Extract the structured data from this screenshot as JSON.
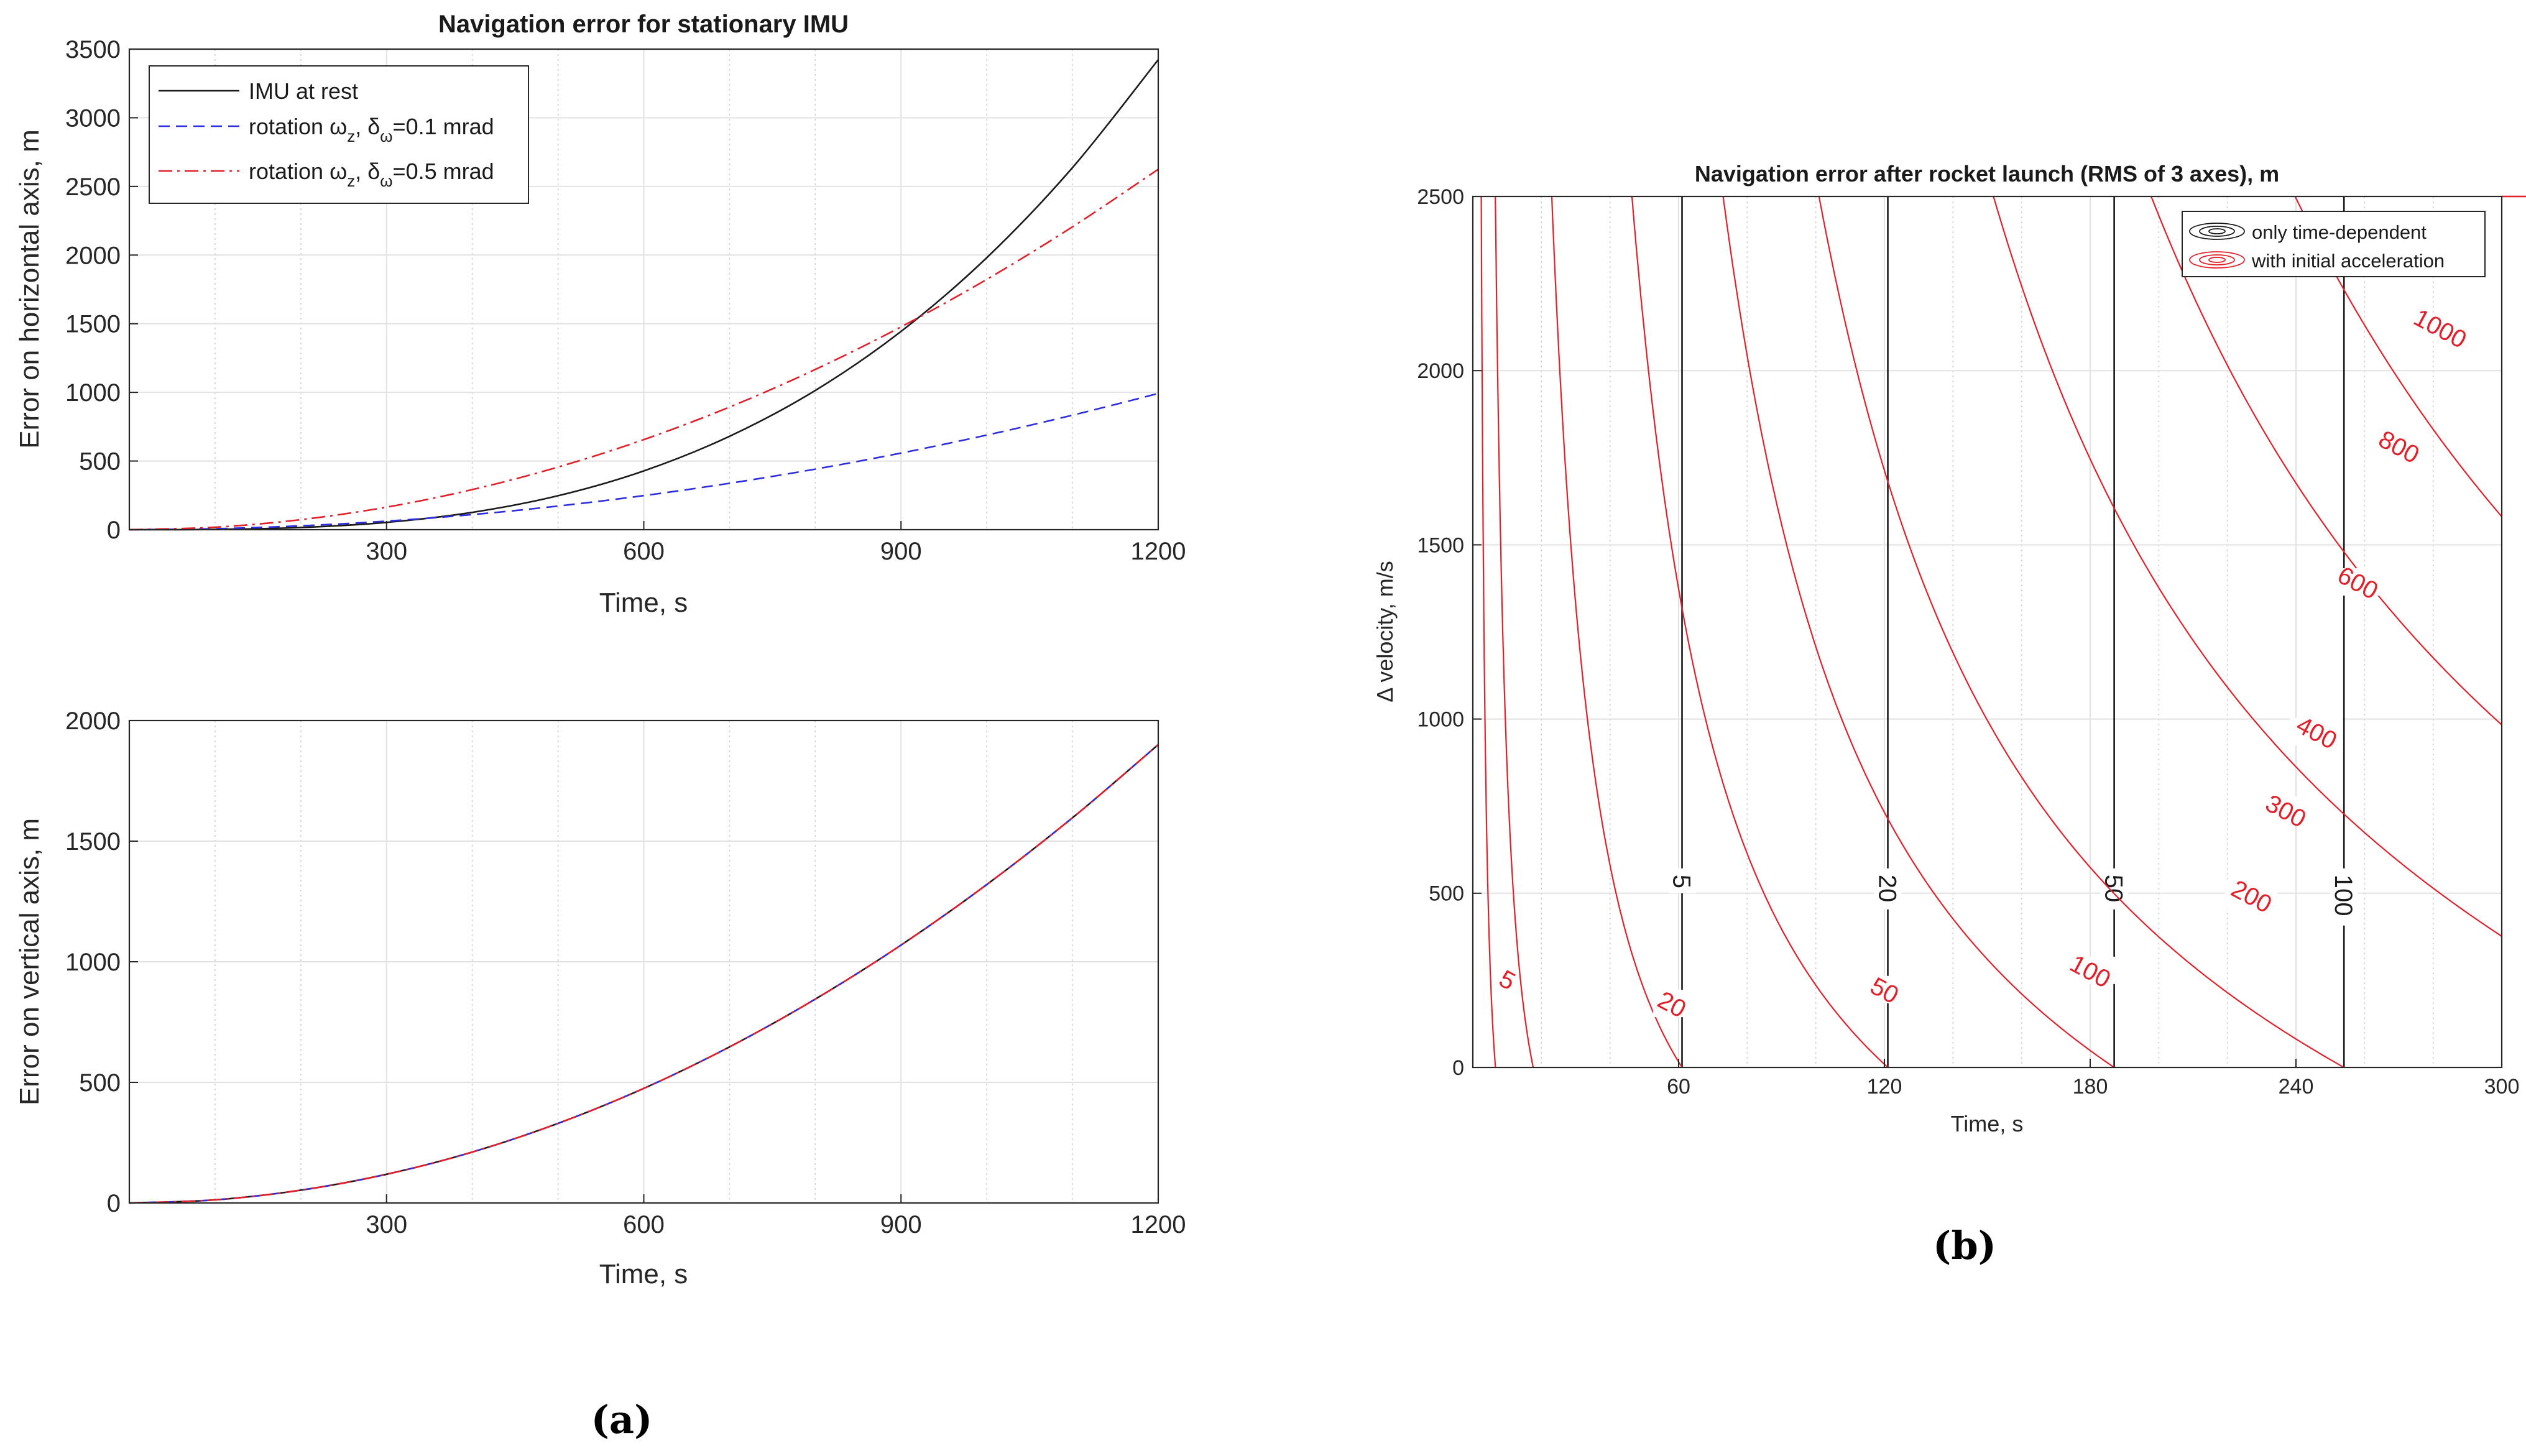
{
  "figure": {
    "caption_a": "(a)",
    "caption_b": "(b)"
  },
  "chart_data": [
    {
      "id": "horizontal",
      "type": "line",
      "title": "Navigation error for stationary IMU",
      "xlabel": "Time, s",
      "ylabel": "Error on horizontal axis, m",
      "xlim": [
        0,
        1200
      ],
      "ylim": [
        0,
        3500
      ],
      "xticks": [
        300,
        600,
        900,
        1200
      ],
      "yticks": [
        0,
        500,
        1000,
        1500,
        2000,
        2500,
        3000,
        3500
      ],
      "grid": true,
      "legend": "top-left",
      "series": [
        {
          "name": "IMU at rest",
          "legend_prefix": "IMU at rest",
          "legend_sub1": "",
          "legend_mid": "",
          "legend_sub2": "",
          "legend_suffix": "",
          "color": "#1a1a1a",
          "style": "solid",
          "x": [
            0,
            100,
            200,
            300,
            400,
            500,
            600,
            700,
            800,
            900,
            1000,
            1100,
            1200
          ],
          "y": [
            0,
            2,
            16,
            53,
            126,
            247,
            428,
            680,
            1014,
            1444,
            1981,
            2637,
            3423
          ]
        },
        {
          "name": "rotation ωz, δω=0.1 mrad",
          "legend_prefix": "rotation ω",
          "legend_sub1": "z",
          "legend_mid": ", δ",
          "legend_sub2": "ω",
          "legend_suffix": "=0.1 mrad",
          "color": "#2d2de0",
          "style": "dashed",
          "x": [
            0,
            100,
            200,
            300,
            400,
            500,
            600,
            700,
            800,
            900,
            1000,
            1100,
            1200
          ],
          "y": [
            0,
            7,
            28,
            62,
            110,
            172,
            248,
            338,
            441,
            558,
            689,
            834,
            992
          ]
        },
        {
          "name": "rotation ωz, δω=0.5 mrad",
          "legend_prefix": "rotation ω",
          "legend_sub1": "z",
          "legend_mid": ", δ",
          "legend_sub2": "ω",
          "legend_suffix": "=0.5 mrad",
          "color": "#e0202a",
          "style": "dashdot",
          "x": [
            0,
            100,
            200,
            300,
            400,
            500,
            600,
            700,
            800,
            900,
            1000,
            1100,
            1200
          ],
          "y": [
            0,
            18,
            73,
            164,
            292,
            456,
            656,
            893,
            1167,
            1477,
            1823,
            2206,
            2625
          ]
        }
      ]
    },
    {
      "id": "vertical",
      "type": "line",
      "title": "",
      "xlabel": "Time, s",
      "ylabel": "Error on vertical axis, m",
      "xlim": [
        0,
        1200
      ],
      "ylim": [
        0,
        2000
      ],
      "xticks": [
        300,
        600,
        900,
        1200
      ],
      "yticks": [
        0,
        500,
        1000,
        1500,
        2000
      ],
      "grid": true,
      "series": [
        {
          "name": "IMU at rest",
          "color": "#1a1a1a",
          "style": "solid",
          "x": [
            0,
            100,
            200,
            300,
            400,
            500,
            600,
            700,
            800,
            900,
            1000,
            1100,
            1200
          ],
          "y": [
            0,
            13,
            53,
            119,
            211,
            330,
            475,
            647,
            845,
            1069,
            1320,
            1597,
            1900
          ]
        },
        {
          "name": "rotation ωz, δω=0.1 mrad",
          "color": "#2d2de0",
          "style": "dashed",
          "x": [
            0,
            100,
            200,
            300,
            400,
            500,
            600,
            700,
            800,
            900,
            1000,
            1100,
            1200
          ],
          "y": [
            0,
            13,
            53,
            119,
            211,
            330,
            475,
            647,
            845,
            1069,
            1320,
            1597,
            1900
          ]
        },
        {
          "name": "rotation ωz, δω=0.5 mrad",
          "color": "#e0202a",
          "style": "dashdot",
          "x": [
            0,
            100,
            200,
            300,
            400,
            500,
            600,
            700,
            800,
            900,
            1000,
            1100,
            1200
          ],
          "y": [
            0,
            13,
            53,
            119,
            211,
            330,
            475,
            647,
            845,
            1069,
            1320,
            1597,
            1900
          ]
        }
      ]
    },
    {
      "id": "contour",
      "type": "contour",
      "title": "Navigation error after rocket launch (RMS of 3 axes), m",
      "xlabel": "Time, s",
      "ylabel": "Δ velocity, m/s",
      "xlim": [
        0,
        300
      ],
      "ylim": [
        0,
        2500
      ],
      "xticks": [
        60,
        120,
        180,
        240,
        300
      ],
      "yticks": [
        0,
        500,
        1000,
        1500,
        2000,
        2500
      ],
      "grid": true,
      "legend": "top-right",
      "legend_entries": [
        {
          "label": "only time-dependent",
          "color": "#1a1a1a"
        },
        {
          "label": "with initial acceleration",
          "color": "#e0202a"
        }
      ],
      "time_dependent_contours": [
        {
          "level": 5,
          "label": "5",
          "t": 61
        },
        {
          "level": 20,
          "label": "20",
          "t": 121
        },
        {
          "level": 50,
          "label": "50",
          "t": 187
        },
        {
          "level": 100,
          "label": "100",
          "t": 254
        }
      ],
      "acceleration_contours": [
        {
          "level": 5,
          "label": "5",
          "t0": 61,
          "dv": 2.4
        },
        {
          "level": 20,
          "label": "20",
          "t0": 121,
          "dv": 2.4
        },
        {
          "level": 50,
          "label": "50",
          "t0": 187,
          "dv": 2.4
        },
        {
          "level": 100,
          "label": "100",
          "t0": 254,
          "dv": 2.4
        },
        {
          "level": 200,
          "label": "200",
          "t0": 370,
          "dv": 2.8
        },
        {
          "level": 300,
          "label": "300",
          "t0": 469,
          "dv": 3.0
        },
        {
          "level": 400,
          "label": "400",
          "t0": 555,
          "dv": 3.2
        },
        {
          "level": 600,
          "label": "600",
          "t0": 728,
          "dv": 3.6
        },
        {
          "level": 800,
          "label": "800",
          "t0": 857,
          "dv": 3.9
        },
        {
          "level": 1000,
          "label": "1000",
          "t0": 975,
          "dv": 4.2
        }
      ],
      "extra_red_curve_times": [
        3,
        8
      ]
    }
  ]
}
